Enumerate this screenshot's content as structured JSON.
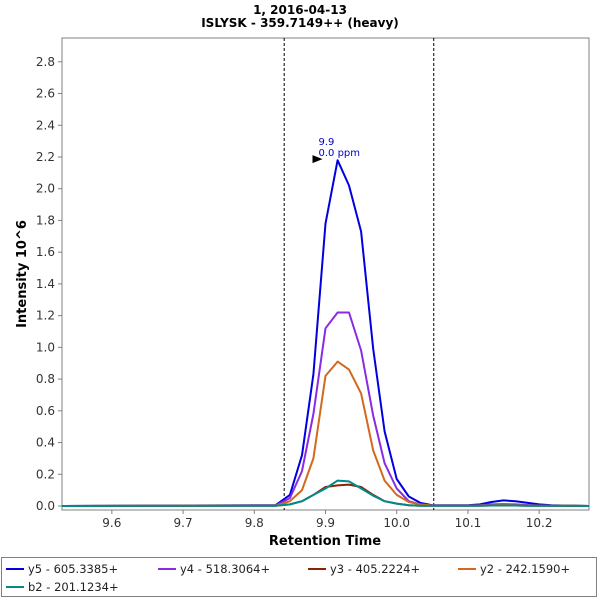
{
  "chart_data": {
    "type": "line",
    "title": "1, 2016-04-13",
    "subtitle": "ISLYSK - 359.7149++ (heavy)",
    "xlabel": "Retention Time",
    "ylabel": "Intensity 10^6",
    "xlim": [
      9.53,
      10.27
    ],
    "ylim": [
      0,
      2.95
    ],
    "xticks": [
      "9.6",
      "9.7",
      "9.8",
      "9.9",
      "10.0",
      "10.1",
      "10.2"
    ],
    "yticks": [
      "0.0",
      "0.2",
      "0.4",
      "0.6",
      "0.8",
      "1.0",
      "1.2",
      "1.4",
      "1.6",
      "1.8",
      "2.0",
      "2.2",
      "2.4",
      "2.6",
      "2.8"
    ],
    "grid": false,
    "legend_position": "bottom",
    "integration_bounds": [
      9.842,
      10.052
    ],
    "peak_annotation": {
      "rt_label": "9.9",
      "ppm_label": "0.0 ppm",
      "x": 9.9,
      "y": 2.18
    },
    "x": [
      9.53,
      9.83,
      9.85,
      9.867,
      9.883,
      9.9,
      9.917,
      9.933,
      9.95,
      9.967,
      9.983,
      10.0,
      10.017,
      10.033,
      10.05,
      10.067,
      10.083,
      10.1,
      10.117,
      10.133,
      10.15,
      10.167,
      10.183,
      10.2,
      10.217,
      10.233,
      10.27
    ],
    "series": [
      {
        "name": "y5 - 605.3385+",
        "color": "#0000e0",
        "values": [
          0,
          0.005,
          0.07,
          0.32,
          0.83,
          1.78,
          2.18,
          2.02,
          1.73,
          0.99,
          0.47,
          0.17,
          0.06,
          0.02,
          0.005,
          0.005,
          0.005,
          0.005,
          0.01,
          0.025,
          0.035,
          0.03,
          0.02,
          0.01,
          0.005,
          0.003,
          0
        ]
      },
      {
        "name": "y4 - 518.3064+",
        "color": "#8a2be2",
        "values": [
          0,
          0.003,
          0.05,
          0.22,
          0.58,
          1.12,
          1.22,
          1.22,
          0.98,
          0.57,
          0.27,
          0.11,
          0.03,
          0.01,
          0.003,
          0.003,
          0.003,
          0.003,
          0.005,
          0.01,
          0.012,
          0.01,
          0.006,
          0.003,
          0.002,
          0.001,
          0
        ]
      },
      {
        "name": "y3 - 405.2224+",
        "color": "#8b2500",
        "values": [
          0,
          0.002,
          0.01,
          0.03,
          0.07,
          0.12,
          0.13,
          0.135,
          0.12,
          0.07,
          0.03,
          0.015,
          0.005,
          0.002,
          0.001,
          0.001,
          0.001,
          0.001,
          0.002,
          0.003,
          0.004,
          0.003,
          0.002,
          0.001,
          0.001,
          0.001,
          0
        ]
      },
      {
        "name": "y2 - 242.1590+",
        "color": "#d2691e",
        "values": [
          0,
          0.002,
          0.03,
          0.1,
          0.3,
          0.82,
          0.91,
          0.86,
          0.71,
          0.35,
          0.16,
          0.07,
          0.025,
          0.01,
          0.003,
          0.002,
          0.002,
          0.002,
          0.003,
          0.005,
          0.006,
          0.005,
          0.003,
          0.002,
          0.001,
          0.001,
          0
        ]
      },
      {
        "name": "b2 - 201.1234+",
        "color": "#008b8b",
        "values": [
          0,
          0.002,
          0.01,
          0.03,
          0.07,
          0.11,
          0.16,
          0.155,
          0.11,
          0.065,
          0.03,
          0.015,
          0.005,
          0.002,
          0.001,
          0.001,
          0.001,
          0.001,
          0.002,
          0.003,
          0.004,
          0.003,
          0.002,
          0.001,
          0.001,
          0.001,
          0
        ]
      }
    ]
  }
}
